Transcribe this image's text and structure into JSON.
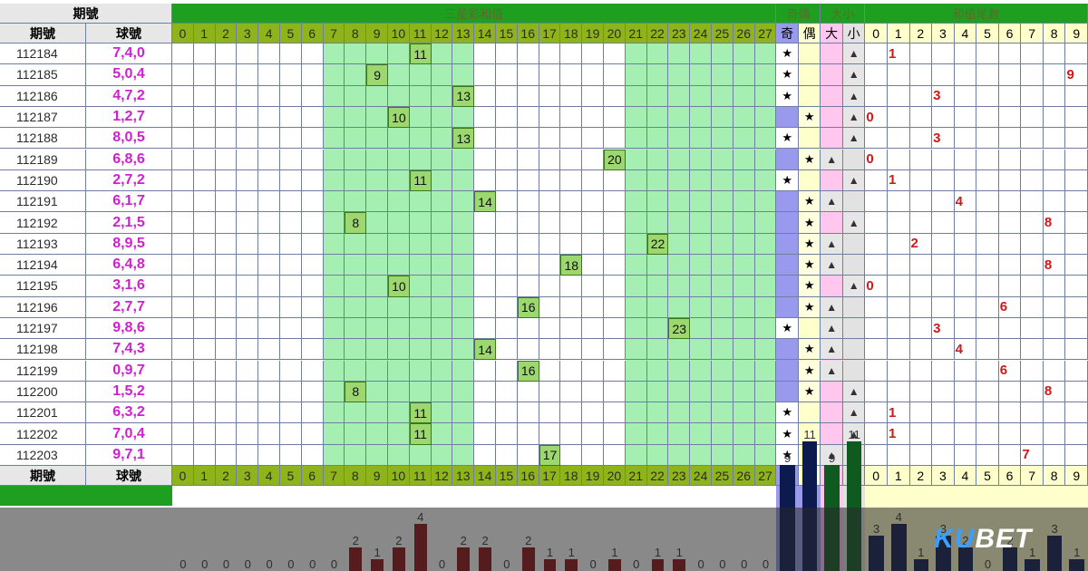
{
  "header": {
    "period_group": "期號",
    "sum_title": "三星彩和值",
    "odd_even_title": "奇偶",
    "big_small_title": "大小",
    "tail_title": "和值尾數"
  },
  "columns": {
    "period": "期號",
    "balls": "球號",
    "sums": [
      "0",
      "1",
      "2",
      "3",
      "4",
      "5",
      "6",
      "7",
      "8",
      "9",
      "10",
      "11",
      "12",
      "13",
      "14",
      "15",
      "16",
      "17",
      "18",
      "19",
      "20",
      "21",
      "22",
      "23",
      "24",
      "25",
      "26",
      "27"
    ],
    "odd": "奇",
    "even": "偶",
    "big": "大",
    "small": "小",
    "tails": [
      "0",
      "1",
      "2",
      "3",
      "4",
      "5",
      "6",
      "7",
      "8",
      "9"
    ]
  },
  "symbols": {
    "star": "★",
    "triangle": "▲"
  },
  "rows": [
    {
      "period": "112184",
      "balls": "7,4,0",
      "sum": "11",
      "oe": "odd",
      "bs": "small",
      "tail": "1"
    },
    {
      "period": "112185",
      "balls": "5,0,4",
      "sum": "9",
      "oe": "odd",
      "bs": "small",
      "tail": "9"
    },
    {
      "period": "112186",
      "balls": "4,7,2",
      "sum": "13",
      "oe": "odd",
      "bs": "small",
      "tail": "3"
    },
    {
      "period": "112187",
      "balls": "1,2,7",
      "sum": "10",
      "oe": "even",
      "bs": "small",
      "tail": "0"
    },
    {
      "period": "112188",
      "balls": "8,0,5",
      "sum": "13",
      "oe": "odd",
      "bs": "small",
      "tail": "3"
    },
    {
      "period": "112189",
      "balls": "6,8,6",
      "sum": "20",
      "oe": "even",
      "bs": "big",
      "tail": "0"
    },
    {
      "period": "112190",
      "balls": "2,7,2",
      "sum": "11",
      "oe": "odd",
      "bs": "small",
      "tail": "1"
    },
    {
      "period": "112191",
      "balls": "6,1,7",
      "sum": "14",
      "oe": "even",
      "bs": "big",
      "tail": "4"
    },
    {
      "period": "112192",
      "balls": "2,1,5",
      "sum": "8",
      "oe": "even",
      "bs": "small",
      "tail": "8"
    },
    {
      "period": "112193",
      "balls": "8,9,5",
      "sum": "22",
      "oe": "even",
      "bs": "big",
      "tail": "2"
    },
    {
      "period": "112194",
      "balls": "6,4,8",
      "sum": "18",
      "oe": "even",
      "bs": "big",
      "tail": "8"
    },
    {
      "period": "112195",
      "balls": "3,1,6",
      "sum": "10",
      "oe": "even",
      "bs": "small",
      "tail": "0"
    },
    {
      "period": "112196",
      "balls": "2,7,7",
      "sum": "16",
      "oe": "even",
      "bs": "big",
      "tail": "6"
    },
    {
      "period": "112197",
      "balls": "9,8,6",
      "sum": "23",
      "oe": "odd",
      "bs": "big",
      "tail": "3"
    },
    {
      "period": "112198",
      "balls": "7,4,3",
      "sum": "14",
      "oe": "even",
      "bs": "big",
      "tail": "4"
    },
    {
      "period": "112199",
      "balls": "0,9,7",
      "sum": "16",
      "oe": "even",
      "bs": "big",
      "tail": "6"
    },
    {
      "period": "112200",
      "balls": "1,5,2",
      "sum": "8",
      "oe": "even",
      "bs": "small",
      "tail": "8"
    },
    {
      "period": "112201",
      "balls": "6,3,2",
      "sum": "11",
      "oe": "odd",
      "bs": "small",
      "tail": "1"
    },
    {
      "period": "112202",
      "balls": "7,0,4",
      "sum": "11",
      "oe": "odd",
      "bs": "small",
      "tail": "1"
    },
    {
      "period": "112203",
      "balls": "9,7,1",
      "sum": "17",
      "oe": "odd",
      "bs": "big",
      "tail": "7"
    }
  ],
  "stats": {
    "sum_counts": [
      0,
      0,
      0,
      0,
      0,
      0,
      0,
      0,
      2,
      1,
      2,
      4,
      0,
      2,
      2,
      0,
      2,
      1,
      1,
      0,
      1,
      0,
      1,
      1,
      0,
      0,
      0,
      0
    ],
    "odd_count": 9,
    "even_count": 11,
    "big_count": 9,
    "small_count": 11,
    "tail_counts": [
      3,
      4,
      1,
      3,
      2,
      0,
      2,
      1,
      3,
      1
    ]
  },
  "colors": {
    "sum_band": "#a6efb2",
    "odd_band": "#9999ee",
    "even_band": "#ffffcc",
    "big_band": "#ffc6ee",
    "small_band": "#e2e2e2",
    "tail_band": "#ffffcc",
    "sum_bar": "#8b0f0f",
    "oe_bar": "#0c1a4d",
    "big_bar": "#0f5a1f",
    "small_bar": "#0f5a1f",
    "tail_bar": "#0c1a4d"
  },
  "watermark": {
    "brand_ku": "KU",
    "brand_bet": "BET"
  }
}
